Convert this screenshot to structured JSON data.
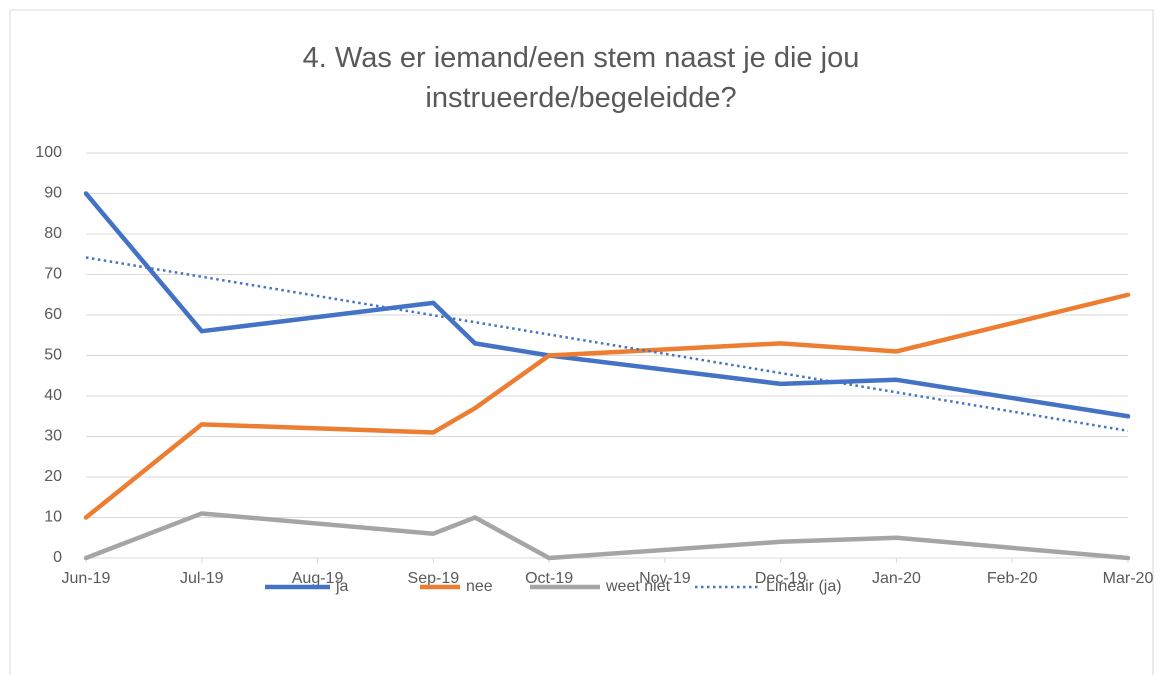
{
  "chart_data": {
    "type": "line",
    "title": "4. Was er iemand/een stem naast je die jou instrueerde/begeleidde?",
    "x": [
      0,
      1,
      3,
      3.36,
      4,
      6,
      7,
      9
    ],
    "xlim": [
      0,
      9
    ],
    "xticks": [
      {
        "value": 0,
        "label": "Jun-19"
      },
      {
        "value": 1,
        "label": "Jul-19"
      },
      {
        "value": 2,
        "label": "Aug-19"
      },
      {
        "value": 3,
        "label": "Sep-19"
      },
      {
        "value": 4,
        "label": "Oct-19"
      },
      {
        "value": 5,
        "label": "Nov-19"
      },
      {
        "value": 6,
        "label": "Dec-19"
      },
      {
        "value": 7,
        "label": "Jan-20"
      },
      {
        "value": 8,
        "label": "Feb-20"
      },
      {
        "value": 9,
        "label": "Mar-20"
      }
    ],
    "ylim": [
      0,
      100
    ],
    "yticks": [
      0,
      10,
      20,
      30,
      40,
      50,
      60,
      70,
      80,
      90,
      100
    ],
    "grid": true,
    "legend": "bottom",
    "series": [
      {
        "name": "ja",
        "color": "#4472c4",
        "values": [
          90,
          56,
          63,
          53,
          50,
          43,
          44,
          35
        ]
      },
      {
        "name": "nee",
        "color": "#ed7d31",
        "values": [
          10,
          33,
          31,
          37,
          50,
          53,
          51,
          65
        ]
      },
      {
        "name": "weet niet",
        "color": "#a5a5a5",
        "values": [
          0,
          11,
          6,
          10,
          0,
          4,
          5,
          0
        ]
      },
      {
        "name": "Lineair (ja)",
        "color": "#4472c4",
        "dashed": true,
        "x": [
          0,
          9
        ],
        "values": [
          74.2,
          31.4
        ]
      }
    ]
  }
}
